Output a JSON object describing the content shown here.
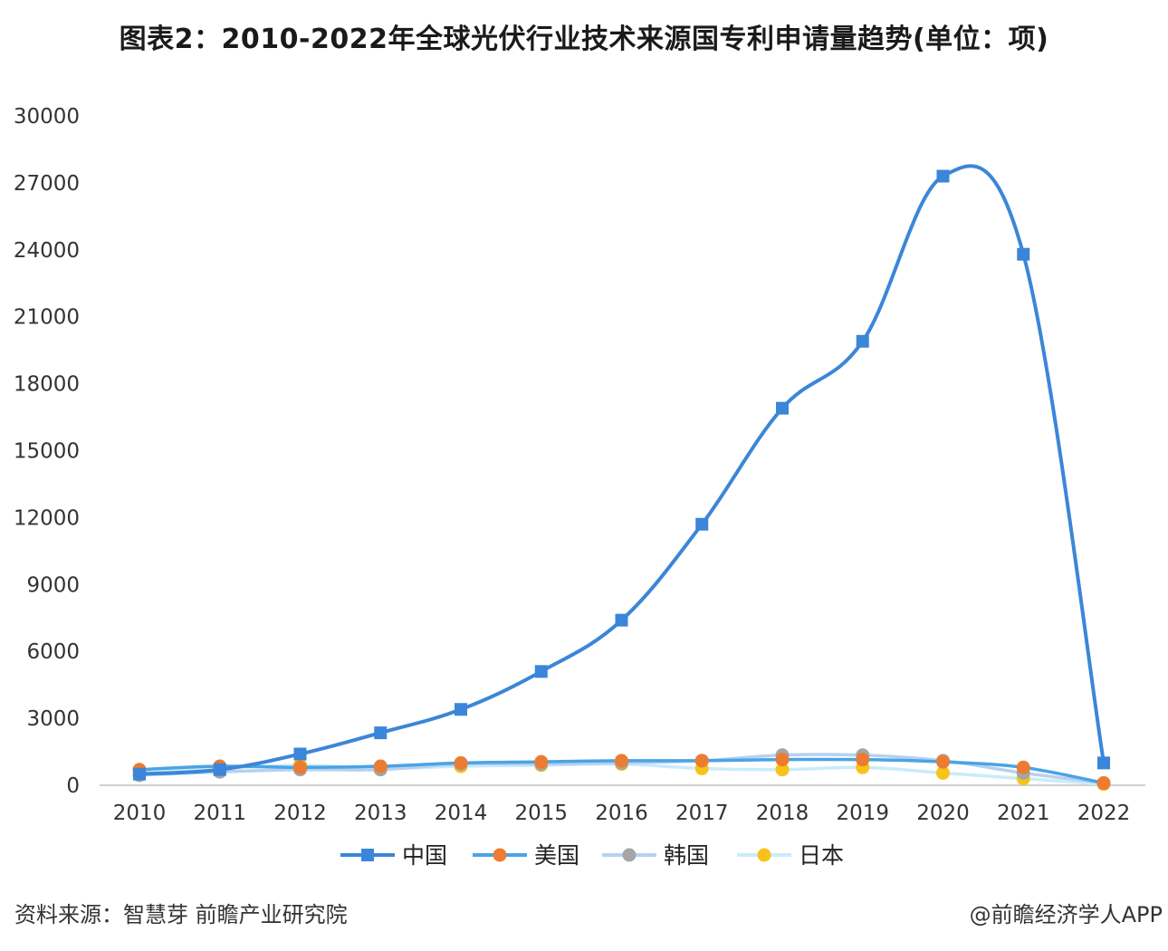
{
  "header": {
    "title": "图表2：2010-2022年全球光伏行业技术来源国专利申请量趋势(单位：项)"
  },
  "footer": {
    "source": "资料来源：智慧芽 前瞻产业研究院",
    "brand": "@前瞻经济学人APP"
  },
  "chart_data": {
    "type": "line",
    "title": "图表2：2010-2022年全球光伏行业技术来源国专利申请量趋势(单位：项)",
    "xlabel": "",
    "ylabel": "",
    "x": [
      "2010",
      "2011",
      "2012",
      "2013",
      "2014",
      "2015",
      "2016",
      "2017",
      "2018",
      "2019",
      "2020",
      "2021",
      "2022"
    ],
    "ylim": [
      0,
      30000
    ],
    "yticks": [
      0,
      3000,
      6000,
      9000,
      12000,
      15000,
      18000,
      21000,
      24000,
      27000,
      30000
    ],
    "grid": false,
    "legend": "bottom",
    "series": [
      {
        "name": "中国",
        "color": "#3b86d8",
        "marker": "square",
        "values": [
          500,
          700,
          1400,
          2350,
          3400,
          5100,
          7400,
          11700,
          16900,
          19900,
          27300,
          23800,
          1000
        ]
      },
      {
        "name": "美国",
        "color": "#4aa3e6",
        "marker": "circle",
        "markerColor": "#ec7c31",
        "values": [
          700,
          850,
          800,
          850,
          1000,
          1050,
          1100,
          1100,
          1150,
          1150,
          1050,
          800,
          100
        ]
      },
      {
        "name": "韩国",
        "color": "#b6d1f0",
        "marker": "circle",
        "markerColor": "#a5a5a5",
        "values": [
          450,
          600,
          700,
          700,
          950,
          950,
          1000,
          1100,
          1350,
          1350,
          1100,
          550,
          100
        ]
      },
      {
        "name": "日本",
        "color": "#c9ecfa",
        "marker": "circle",
        "markerColor": "#f7c31a",
        "values": [
          650,
          750,
          900,
          750,
          850,
          900,
          950,
          750,
          700,
          800,
          550,
          300,
          50
        ]
      }
    ]
  }
}
